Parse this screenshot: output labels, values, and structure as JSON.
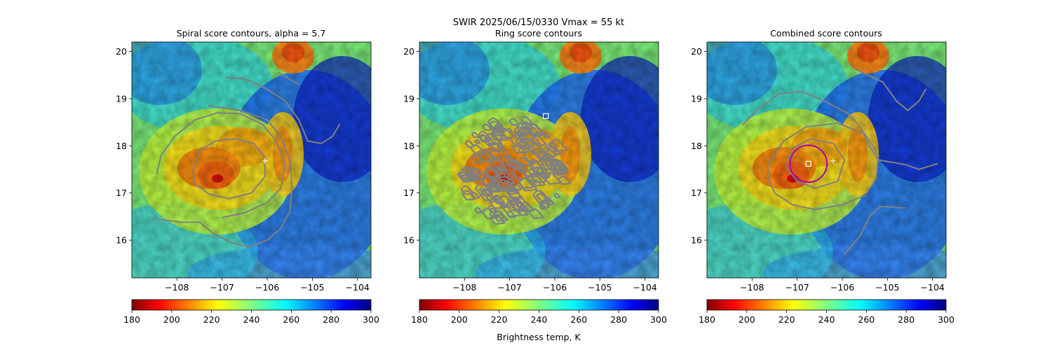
{
  "figure": {
    "suptitle": "SWIR  2025/06/15/0330    Vmax = 55 kt",
    "colorbar_label": "Brightness temp, K"
  },
  "colors": {
    "contour": "#808080",
    "ring": "#b000b0",
    "marker": "#ffffff"
  },
  "chart_data": [
    {
      "type": "heatmap",
      "title": "Spiral score contours, alpha =  5.7",
      "xlim": [
        -109.0,
        -103.7
      ],
      "ylim": [
        15.2,
        20.2
      ],
      "xticks": [
        -108,
        -107,
        -106,
        -105,
        -104
      ],
      "yticks": [
        16,
        17,
        18,
        19,
        20
      ],
      "xtick_labels": [
        "−108",
        "−107",
        "−106",
        "−105",
        "−104"
      ],
      "ytick_labels": [
        "16",
        "17",
        "18",
        "19",
        "20"
      ],
      "colorbar": {
        "range": [
          180,
          300
        ],
        "ticks": [
          180,
          200,
          220,
          240,
          260,
          280,
          300
        ],
        "labels": [
          "180",
          "200",
          "220",
          "240",
          "260",
          "280",
          "300"
        ],
        "cmap": "jet_r"
      },
      "contours": [
        [
          [
            -107.65,
            17.45
          ],
          [
            -107.5,
            17.9
          ],
          [
            -107.15,
            18.1
          ],
          [
            -106.7,
            18.15
          ],
          [
            -106.3,
            18.05
          ],
          [
            -106.05,
            17.75
          ],
          [
            -106.05,
            17.35
          ],
          [
            -106.35,
            17.0
          ],
          [
            -106.85,
            16.88
          ],
          [
            -107.3,
            16.98
          ],
          [
            -107.6,
            17.2
          ],
          [
            -107.65,
            17.45
          ]
        ],
        [
          [
            -108.45,
            17.4
          ],
          [
            -108.35,
            17.8
          ],
          [
            -108.05,
            18.2
          ],
          [
            -107.6,
            18.55
          ],
          [
            -107.1,
            18.7
          ],
          [
            -106.6,
            18.68
          ],
          [
            -106.1,
            18.45
          ],
          [
            -105.8,
            18.1
          ],
          [
            -105.6,
            17.6
          ],
          [
            -105.7,
            17.1
          ],
          [
            -106.0,
            16.8
          ],
          [
            -106.5,
            16.58
          ],
          [
            -107.0,
            16.48
          ]
        ],
        [
          [
            -108.45,
            16.45
          ],
          [
            -107.9,
            16.38
          ],
          [
            -107.5,
            16.38
          ],
          [
            -107.2,
            16.15
          ],
          [
            -106.8,
            15.95
          ],
          [
            -106.4,
            15.85
          ],
          [
            -106.0,
            16.0
          ],
          [
            -105.7,
            16.25
          ],
          [
            -105.5,
            16.6
          ],
          [
            -105.45,
            17.1
          ],
          [
            -105.5,
            17.7
          ],
          [
            -105.7,
            18.2
          ],
          [
            -106.0,
            18.55
          ],
          [
            -106.6,
            18.75
          ],
          [
            -107.3,
            18.85
          ]
        ],
        [
          [
            -106.9,
            19.45
          ],
          [
            -106.5,
            19.42
          ],
          [
            -106.0,
            19.2
          ],
          [
            -105.6,
            18.95
          ],
          [
            -105.3,
            18.55
          ],
          [
            -105.1,
            18.1
          ],
          [
            -104.8,
            18.05
          ],
          [
            -104.55,
            18.2
          ],
          [
            -104.4,
            18.45
          ]
        ],
        [
          [
            -105.75,
            19.55
          ],
          [
            -105.3,
            19.3
          ]
        ]
      ],
      "markers": [
        {
          "lon": -106.05,
          "lat": 17.68,
          "symbol": "+"
        }
      ]
    },
    {
      "type": "heatmap",
      "title": "Ring score contours",
      "xlim": [
        -109.0,
        -103.7
      ],
      "ylim": [
        15.2,
        20.2
      ],
      "xticks": [
        -108,
        -107,
        -106,
        -105,
        -104
      ],
      "yticks": [
        16,
        17,
        18,
        19,
        20
      ],
      "xtick_labels": [
        "−108",
        "−107",
        "−106",
        "−105",
        "−104"
      ],
      "ytick_labels": [
        "16",
        "17",
        "18",
        "19",
        "20"
      ],
      "colorbar": {
        "range": [
          180,
          300
        ],
        "ticks": [
          180,
          200,
          220,
          240,
          260,
          280,
          300
        ],
        "labels": [
          "180",
          "200",
          "220",
          "240",
          "260",
          "280",
          "300"
        ],
        "cmap": "jet_r"
      },
      "contour_region": {
        "center_lon": -106.95,
        "center_lat": 17.5,
        "radius_deg": 1.15
      },
      "markers": [
        {
          "lon": -106.2,
          "lat": 18.63,
          "symbol": "square"
        }
      ]
    },
    {
      "type": "heatmap",
      "title": "Combined score contours",
      "xlim": [
        -109.0,
        -103.7
      ],
      "ylim": [
        15.2,
        20.2
      ],
      "xticks": [
        -108,
        -107,
        -106,
        -105,
        -104
      ],
      "yticks": [
        16,
        17,
        18,
        19,
        20
      ],
      "xtick_labels": [
        "−108",
        "−107",
        "−106",
        "−105",
        "−104"
      ],
      "ytick_labels": [
        "16",
        "17",
        "18",
        "19",
        "20"
      ],
      "colorbar": {
        "range": [
          180,
          300
        ],
        "ticks": [
          180,
          200,
          220,
          240,
          260,
          280,
          300
        ],
        "labels": [
          "180",
          "200",
          "220",
          "240",
          "260",
          "280",
          "300"
        ],
        "cmap": "jet_r"
      },
      "contours": [
        [
          [
            -107.25,
            17.55
          ],
          [
            -107.1,
            17.95
          ],
          [
            -106.7,
            18.15
          ],
          [
            -106.2,
            18.05
          ],
          [
            -105.95,
            17.7
          ],
          [
            -106.1,
            17.25
          ],
          [
            -106.6,
            17.1
          ],
          [
            -107.0,
            17.25
          ],
          [
            -107.25,
            17.55
          ]
        ],
        [
          [
            -107.65,
            17.6
          ],
          [
            -107.3,
            18.1
          ],
          [
            -106.8,
            18.4
          ],
          [
            -106.1,
            18.48
          ],
          [
            -105.5,
            18.25
          ],
          [
            -105.2,
            17.8
          ],
          [
            -105.25,
            17.3
          ],
          [
            -105.5,
            16.95
          ],
          [
            -106.0,
            16.75
          ],
          [
            -106.6,
            16.65
          ],
          [
            -107.1,
            16.75
          ],
          [
            -107.5,
            17.0
          ],
          [
            -107.65,
            17.3
          ],
          [
            -107.65,
            17.6
          ]
        ],
        [
          [
            -108.2,
            18.45
          ],
          [
            -107.9,
            18.75
          ],
          [
            -107.4,
            19.1
          ],
          [
            -106.9,
            19.15
          ],
          [
            -106.4,
            18.95
          ],
          [
            -105.9,
            18.7
          ],
          [
            -105.6,
            18.4
          ],
          [
            -105.4,
            18.0
          ],
          [
            -105.2,
            17.7
          ],
          [
            -104.6,
            17.6
          ],
          [
            -104.3,
            17.5
          ],
          [
            -103.9,
            17.62
          ]
        ],
        [
          [
            -105.7,
            19.62
          ],
          [
            -105.1,
            19.35
          ],
          [
            -104.8,
            18.95
          ],
          [
            -104.55,
            18.75
          ],
          [
            -104.3,
            18.95
          ],
          [
            -104.15,
            19.2
          ]
        ],
        [
          [
            -105.95,
            15.7
          ],
          [
            -105.6,
            16.1
          ],
          [
            -105.4,
            16.5
          ],
          [
            -105.15,
            16.72
          ],
          [
            -104.6,
            16.68
          ]
        ]
      ],
      "ring": {
        "center_lon": -106.75,
        "center_lat": 17.62,
        "radius_deg": 0.41
      },
      "markers": [
        {
          "lon": -106.75,
          "lat": 17.62,
          "symbol": "square"
        },
        {
          "lon": -106.2,
          "lat": 17.68,
          "symbol": "+"
        }
      ]
    }
  ]
}
